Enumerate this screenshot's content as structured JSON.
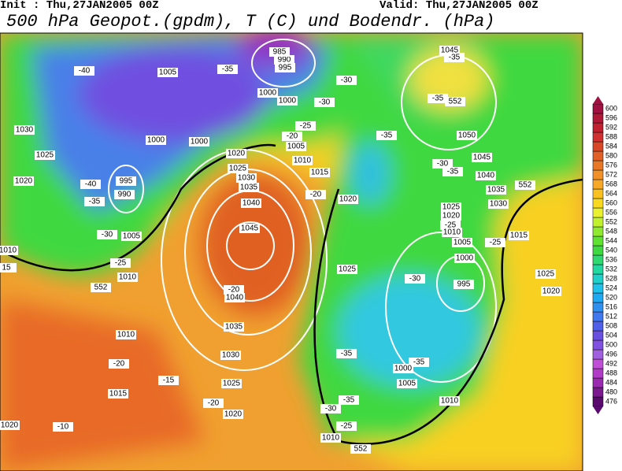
{
  "header": {
    "init": "Init : Thu,27JAN2005 00Z",
    "valid": "Valid: Thu,27JAN2005 00Z",
    "title": "500 hPa Geopot.(gpdm), T (C) und Bodendr. (hPa)"
  },
  "map_labels": [
    "-40",
    "1005",
    "-35",
    "990",
    "995",
    "985",
    "1000",
    "1000",
    "-30",
    "-30",
    "1030",
    "1025",
    "1000",
    "1000",
    "-25",
    "-20",
    "1005",
    "1010",
    "1015",
    "1020",
    "1025",
    "1030",
    "1035",
    "1040",
    "1045",
    "-20",
    "1040",
    "1035",
    "1030",
    "1025",
    "1020",
    "1020",
    "-40",
    "995",
    "990",
    "-35",
    "-30",
    "1005",
    "-25",
    "1010",
    "552",
    "1010",
    "15",
    "1010",
    "-20",
    "1015",
    "-15",
    "-20",
    "1020",
    "-10",
    "-20",
    "1020",
    "1025",
    "-35",
    "1045",
    "-35",
    "-35",
    "552",
    "1050",
    "1045",
    "-30",
    "-35",
    "1040",
    "1035",
    "1030",
    "552",
    "1025",
    "1020",
    "-25",
    "1010",
    "1005",
    "1015",
    "-25",
    "1000",
    "-30",
    "995",
    "1025",
    "1020",
    "-35",
    "-35",
    "1000",
    "1005",
    "1010",
    "-35",
    "-30",
    "-25",
    "1010",
    "552"
  ],
  "colorbar": {
    "levels": [
      476,
      480,
      484,
      488,
      492,
      496,
      500,
      504,
      508,
      512,
      516,
      520,
      524,
      528,
      532,
      536,
      540,
      544,
      548,
      552,
      556,
      560,
      564,
      568,
      572,
      576,
      580,
      584,
      588,
      592,
      596,
      600
    ],
    "colors": [
      "#5a0a6e",
      "#7a1a8e",
      "#9a2ab0",
      "#b03cc8",
      "#c050d8",
      "#a060e0",
      "#8050e0",
      "#6a50e0",
      "#5060e8",
      "#4078f0",
      "#3090f0",
      "#20a8f0",
      "#20c0e8",
      "#20d0c8",
      "#20d8a0",
      "#30d870",
      "#40d840",
      "#60e030",
      "#90e830",
      "#c0f030",
      "#e8f030",
      "#f8d820",
      "#f8c020",
      "#f8a828",
      "#f09028",
      "#e87828",
      "#e06028",
      "#d84828",
      "#d03030",
      "#c02030",
      "#b01838",
      "#a01040"
    ]
  }
}
